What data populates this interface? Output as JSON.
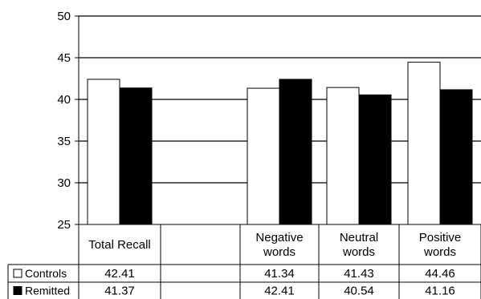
{
  "chart_data": {
    "type": "bar",
    "categories": [
      "Total Recall",
      "",
      "Negative words",
      "Neutral words",
      "Positive words"
    ],
    "category_label_lines": [
      [
        "Total Recall"
      ],
      [],
      [
        "Negative",
        "words"
      ],
      [
        "Neutral",
        "words"
      ],
      [
        "Positive",
        "words"
      ]
    ],
    "series": [
      {
        "name": "Controls",
        "values": [
          42.41,
          null,
          41.34,
          41.43,
          44.46
        ],
        "color": "#ffffff",
        "value_labels": [
          "42.41",
          "",
          "41.34",
          "41.43",
          "44.46"
        ]
      },
      {
        "name": "Remitted",
        "values": [
          41.37,
          null,
          42.41,
          40.54,
          41.16
        ],
        "color": "#000000",
        "value_labels": [
          "41.37",
          "",
          "42.41",
          "40.54",
          "41.16"
        ]
      }
    ],
    "ylim": [
      25,
      50
    ],
    "yticks": [
      25,
      30,
      35,
      40,
      45,
      50
    ],
    "ytick_labels": [
      "25",
      "30",
      "35",
      "40",
      "45",
      "50"
    ],
    "grid": true,
    "legend": "data-table",
    "title": "",
    "xlabel": "",
    "ylabel": ""
  }
}
